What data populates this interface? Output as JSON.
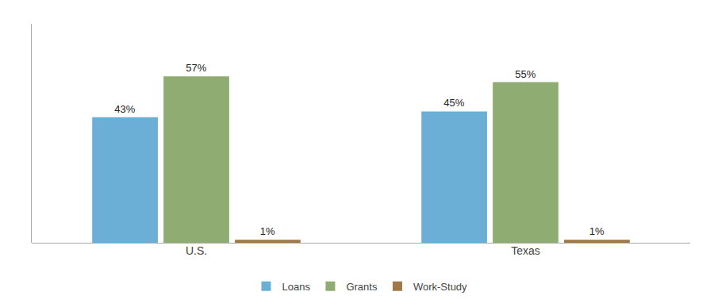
{
  "chart_data": {
    "type": "bar",
    "categories": [
      "U.S.",
      "Texas"
    ],
    "series": [
      {
        "name": "Loans",
        "values": [
          43,
          45
        ],
        "value_labels": [
          "43%",
          "45%"
        ],
        "color": "#6baed6"
      },
      {
        "name": "Grants",
        "values": [
          57,
          55
        ],
        "value_labels": [
          "57%",
          "55%"
        ],
        "color": "#8fac72"
      },
      {
        "name": "Work-Study",
        "values": [
          1,
          1
        ],
        "value_labels": [
          "1%",
          "1%"
        ],
        "color": "#a07848"
      }
    ],
    "ylim": [
      0,
      75
    ],
    "grid": false,
    "legend": "bottom",
    "data_labels": true,
    "tick_labels": "x"
  }
}
